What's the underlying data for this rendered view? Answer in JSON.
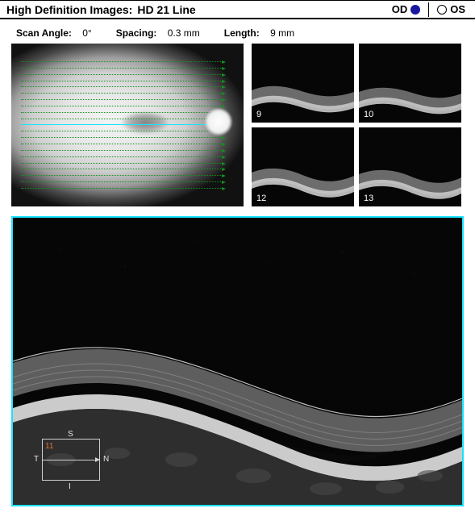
{
  "header": {
    "title_prefix": "High Definition Images:",
    "title_value": "HD 21 Line",
    "eye": {
      "od_label": "OD",
      "os_label": "OS",
      "selected": "OD",
      "selected_color": "#1a1aa0"
    }
  },
  "params": {
    "scan_angle_label": "Scan Angle:",
    "scan_angle_value": "0°",
    "spacing_label": "Spacing:",
    "spacing_value": "0.3 mm",
    "length_label": "Length:",
    "length_value": "9 mm"
  },
  "fundus": {
    "line_count": 21,
    "active_index": 10,
    "line_color": "#159020",
    "active_color": "#18e4ff"
  },
  "thumbs": [
    {
      "num": "9"
    },
    {
      "num": "10"
    },
    {
      "num": "12"
    },
    {
      "num": "13"
    }
  ],
  "main_scan": {
    "border_color": "#18e4ff",
    "orientation": {
      "s": "S",
      "i": "I",
      "t": "T",
      "n": "N",
      "index": "11"
    }
  },
  "colors": {
    "background": "#ffffff",
    "text": "#000000",
    "scan_bg": "#060606",
    "retina_bright": "#cfcfcf",
    "retina_mid": "#8a8a8a",
    "retina_dark": "#3a3a3a"
  }
}
